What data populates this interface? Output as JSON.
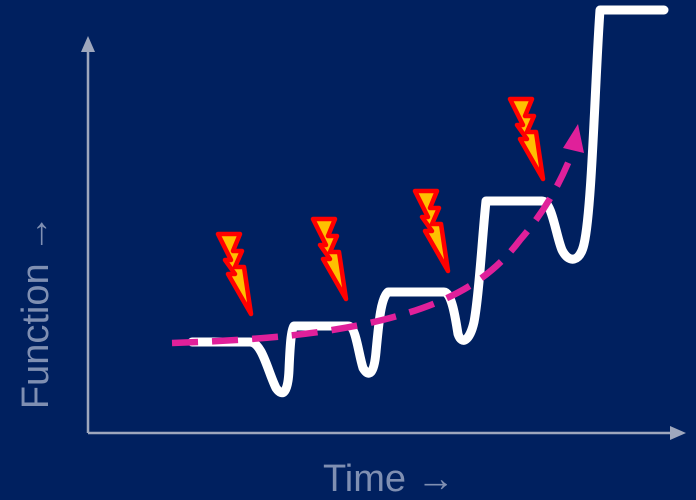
{
  "axes": {
    "x_label": "Time →",
    "y_label": "Function →",
    "axis_color": "#9ea7bd"
  },
  "colors": {
    "background": "#00205f",
    "function_line": "#ffffff",
    "trend_line": "#e0209a",
    "bolt_fill": "#ffc000",
    "bolt_outline": "#ff0000"
  },
  "icons": {
    "disturbance": "lightning-bolt-icon",
    "trend_arrow": "arrowhead-icon"
  },
  "disturbance_count": 4
}
